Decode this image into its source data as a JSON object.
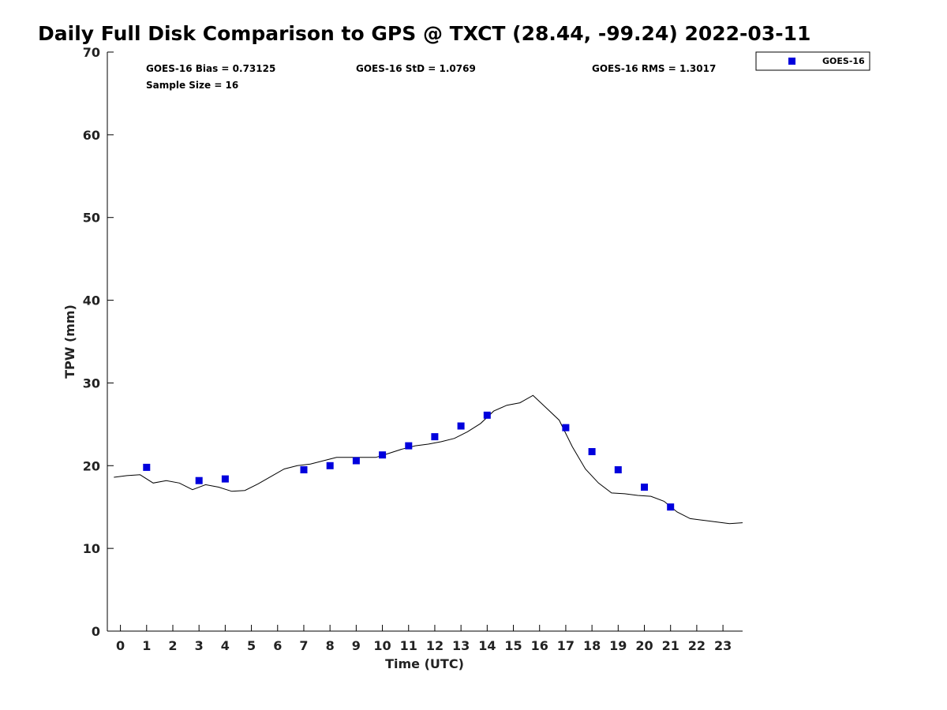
{
  "chart_data": {
    "type": "scatter",
    "title": "Daily Full Disk Comparison to GPS @ TXCT (28.44, -99.24) 2022-03-11",
    "xlabel": "Time (UTC)",
    "ylabel": "TPW (mm)",
    "xlim": [
      -0.5,
      23.75
    ],
    "ylim": [
      0,
      70
    ],
    "x_ticks": [
      0,
      1,
      2,
      3,
      4,
      5,
      6,
      7,
      8,
      9,
      10,
      11,
      12,
      13,
      14,
      15,
      16,
      17,
      18,
      19,
      20,
      21,
      22,
      23
    ],
    "y_ticks": [
      0,
      10,
      20,
      30,
      40,
      50,
      60,
      70
    ],
    "grid": false,
    "legend_position": "top-right",
    "stats": {
      "bias": "GOES-16 Bias = 0.73125",
      "std": "GOES-16 StD = 1.0769",
      "rms": "GOES-16 RMS = 1.3017",
      "sample": "Sample Size = 16"
    },
    "series": [
      {
        "name": "GOES-16",
        "kind": "scatter",
        "marker": "square",
        "color": "#0000dd",
        "x": [
          1,
          3,
          4,
          7,
          8,
          9,
          10,
          11,
          12,
          13,
          14,
          17,
          18,
          19,
          20,
          21
        ],
        "y": [
          19.8,
          18.2,
          18.4,
          19.5,
          20.0,
          20.6,
          21.3,
          22.4,
          23.5,
          24.8,
          26.1,
          24.6,
          21.7,
          19.5,
          17.4,
          15.0
        ]
      },
      {
        "kind": "line",
        "color": "#000000",
        "x": [
          -0.25,
          0.25,
          0.75,
          1.25,
          1.75,
          2.25,
          2.75,
          3.25,
          3.75,
          4.25,
          4.75,
          5.25,
          5.75,
          6.25,
          6.75,
          7.25,
          7.75,
          8.25,
          8.75,
          9.25,
          9.75,
          10.25,
          10.75,
          11.25,
          11.75,
          12.25,
          12.75,
          13.25,
          13.75,
          14.25,
          14.75,
          15.25,
          15.75,
          16.25,
          16.75,
          17.25,
          17.75,
          18.25,
          18.75,
          19.25,
          19.75,
          20.25,
          20.75,
          21.25,
          21.75,
          22.25,
          22.75,
          23.25,
          23.75
        ],
        "y": [
          18.6,
          18.8,
          18.9,
          17.9,
          18.2,
          17.9,
          17.1,
          17.7,
          17.4,
          16.9,
          17.0,
          17.8,
          18.7,
          19.6,
          20.0,
          20.2,
          20.6,
          21.0,
          21.0,
          21.0,
          21.0,
          21.5,
          22.0,
          22.4,
          22.6,
          22.9,
          23.3,
          24.1,
          25.1,
          26.6,
          27.3,
          27.6,
          28.5,
          27.0,
          25.5,
          22.3,
          19.6,
          17.9,
          16.7,
          16.6,
          16.4,
          16.3,
          15.7,
          14.4,
          13.6,
          13.4,
          13.2,
          13.0,
          13.1
        ]
      }
    ]
  }
}
